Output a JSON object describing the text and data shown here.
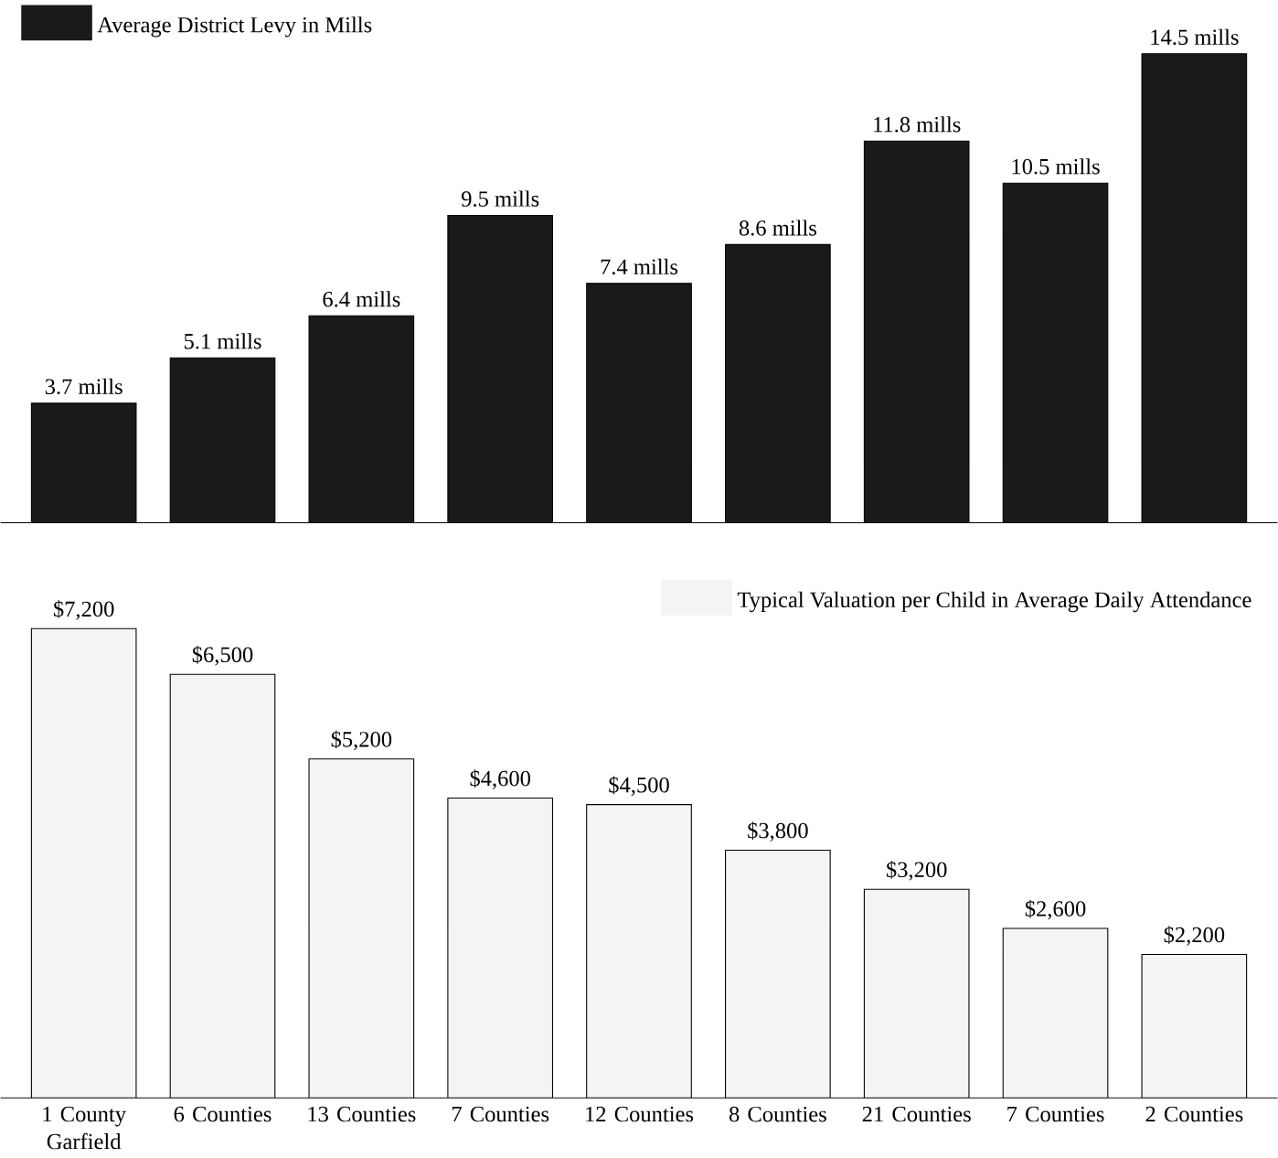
{
  "chart_data": [
    {
      "type": "bar",
      "categories": [
        null,
        null,
        null,
        null,
        null,
        null,
        null,
        null,
        null
      ],
      "series": [
        {
          "name": "Average District Levy in Mills",
          "color": "#1a1a1a",
          "values": [
            3.7,
            5.1,
            6.4,
            9.5,
            7.4,
            8.6,
            11.8,
            10.5,
            14.5
          ],
          "value_labels": [
            "3.7 mills",
            "5.1 mills",
            "6.4 mills",
            "9.5 mills",
            "7.4 mills",
            "8.6 mills",
            "11.8 mills",
            "10.5 mills",
            "14.5 mills"
          ]
        }
      ],
      "tick_labels": "x",
      "legend": "top left"
    },
    {
      "type": "bar",
      "categories": [
        "1 County Garfield",
        "6 Counties",
        "13 Counties",
        "7 Counties",
        "12 Counties",
        "8 Counties",
        "21 Counties",
        "7 Counties",
        "2 Counties"
      ],
      "series": [
        {
          "name": "Typical Valuation per Child in Average Daily Attendance",
          "color": "#f4f4f4",
          "values": [
            7200,
            6500,
            5200,
            4600,
            4500,
            3800,
            3200,
            2600,
            2200
          ],
          "value_labels": [
            "$7,200",
            "$6,500",
            "$5,200",
            "$4,600",
            "$4,500",
            "$3,800",
            "$3,200",
            "$2,600",
            "$2,200"
          ]
        }
      ],
      "tick_labels": "x",
      "legend": "top right"
    }
  ]
}
